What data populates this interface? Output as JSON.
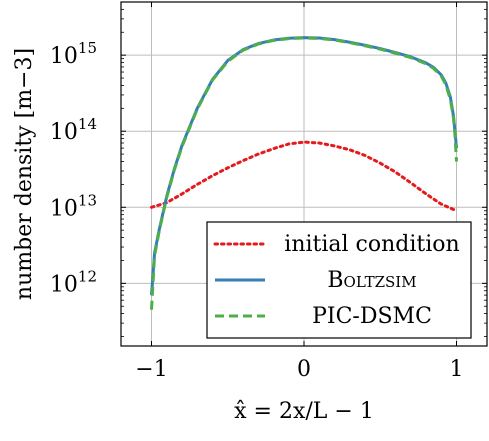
{
  "chart_data": {
    "type": "line",
    "xlabel": "x̂ = 2x/L − 1",
    "ylabel": "number density [m−3]",
    "xlim": [
      -1.2,
      1.2
    ],
    "ylim": [
      150000000000.0,
      5000000000000000.0
    ],
    "yscale": "log",
    "grid": true,
    "legend_position": "bottom-right",
    "x_ticks": [
      {
        "value": -1,
        "label": "−1"
      },
      {
        "value": 0,
        "label": "0"
      },
      {
        "value": 1,
        "label": "1"
      }
    ],
    "y_ticks": [
      {
        "value": 1000000000000.0,
        "base": "10",
        "exp": "12"
      },
      {
        "value": 10000000000000.0,
        "base": "10",
        "exp": "13"
      },
      {
        "value": 100000000000000.0,
        "base": "10",
        "exp": "14"
      },
      {
        "value": 1000000000000000.0,
        "base": "10",
        "exp": "15"
      }
    ],
    "series": [
      {
        "name": "initial condition",
        "color": "#e41a1c",
        "style": "dotted",
        "x": [
          -1.0,
          -0.9,
          -0.8,
          -0.7,
          -0.6,
          -0.5,
          -0.4,
          -0.3,
          -0.2,
          -0.1,
          0.0,
          0.1,
          0.2,
          0.3,
          0.4,
          0.5,
          0.6,
          0.7,
          0.8,
          0.9,
          1.0
        ],
        "y": [
          10000000000000.0,
          11500000000000.0,
          15000000000000.0,
          20000000000000.0,
          26000000000000.0,
          33000000000000.0,
          41000000000000.0,
          50000000000000.0,
          59000000000000.0,
          68000000000000.0,
          72000000000000.0,
          70000000000000.0,
          64000000000000.0,
          57000000000000.0,
          48000000000000.0,
          38000000000000.0,
          29000000000000.0,
          21000000000000.0,
          15000000000000.0,
          11000000000000.0,
          9000000000000.0
        ]
      },
      {
        "name": "Boltzsim",
        "color": "#377eb8",
        "style": "solid",
        "x": [
          -1.0,
          -0.98,
          -0.95,
          -0.9,
          -0.85,
          -0.8,
          -0.7,
          -0.6,
          -0.5,
          -0.4,
          -0.3,
          -0.2,
          -0.1,
          0.0,
          0.1,
          0.2,
          0.3,
          0.4,
          0.5,
          0.6,
          0.7,
          0.8,
          0.85,
          0.9,
          0.93,
          0.96,
          0.98,
          0.99,
          1.0
        ],
        "y": [
          700000000000.0,
          2500000000000.0,
          5000000000000.0,
          14000000000000.0,
          32000000000000.0,
          65000000000000.0,
          200000000000000.0,
          480000000000000.0,
          850000000000000.0,
          1180000000000000.0,
          1420000000000000.0,
          1580000000000000.0,
          1670000000000000.0,
          1700000000000000.0,
          1680000000000000.0,
          1600000000000000.0,
          1480000000000000.0,
          1350000000000000.0,
          1220000000000000.0,
          1080000000000000.0,
          950000000000000.0,
          790000000000000.0,
          690000000000000.0,
          550000000000000.0,
          430000000000000.0,
          280000000000000.0,
          160000000000000.0,
          100000000000000.0,
          60000000000000.0
        ]
      },
      {
        "name": "PIC-DSMC",
        "color": "#4daf4a",
        "style": "dashed",
        "x": [
          -1.0,
          -0.98,
          -0.95,
          -0.9,
          -0.85,
          -0.8,
          -0.7,
          -0.6,
          -0.5,
          -0.4,
          -0.3,
          -0.2,
          -0.1,
          0.0,
          0.1,
          0.2,
          0.3,
          0.4,
          0.5,
          0.6,
          0.7,
          0.8,
          0.85,
          0.9,
          0.93,
          0.96,
          0.98,
          0.99,
          1.0
        ],
        "y": [
          450000000000.0,
          2300000000000.0,
          4800000000000.0,
          13500000000000.0,
          31000000000000.0,
          63000000000000.0,
          195000000000000.0,
          470000000000000.0,
          830000000000000.0,
          1160000000000000.0,
          1400000000000000.0,
          1560000000000000.0,
          1650000000000000.0,
          1680000000000000.0,
          1660000000000000.0,
          1580000000000000.0,
          1460000000000000.0,
          1330000000000000.0,
          1200000000000000.0,
          1060000000000000.0,
          930000000000000.0,
          770000000000000.0,
          670000000000000.0,
          530000000000000.0,
          410000000000000.0,
          260000000000000.0,
          150000000000000.0,
          90000000000000.0,
          40000000000000.0
        ]
      }
    ],
    "legend": [
      {
        "label": "initial condition",
        "series": 0
      },
      {
        "label": "Boltzsim",
        "series": 1,
        "small_caps": true
      },
      {
        "label": "PIC-DSMC",
        "series": 2
      }
    ]
  }
}
